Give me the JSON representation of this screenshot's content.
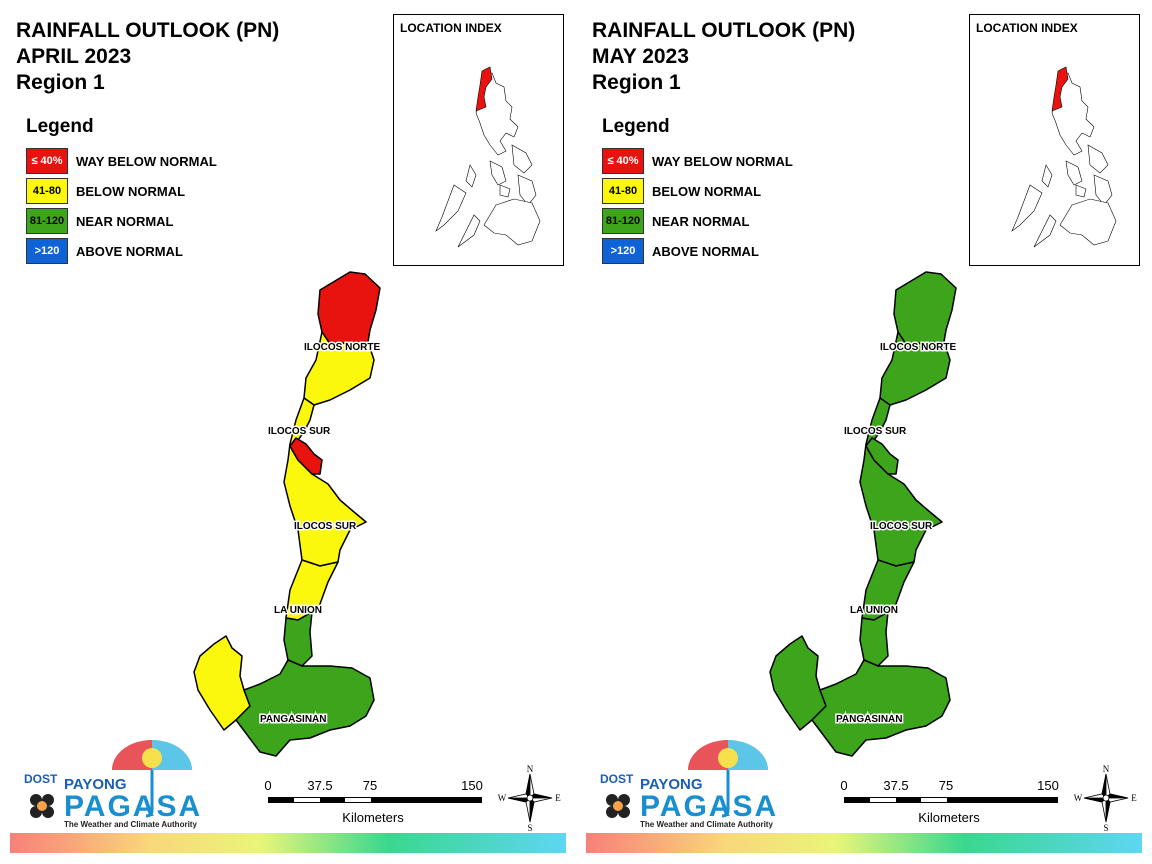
{
  "panels": [
    {
      "title_line1": "RAINFALL OUTLOOK (PN)",
      "title_line2": "APRIL 2023",
      "title_line3": "Region 1",
      "location_index_title": "LOCATION INDEX",
      "province_labels": {
        "ilocos_norte": "ILOCOS NORTE",
        "ilocos_sur_north": "ILOCOS SUR",
        "ilocos_sur_south": "ILOCOS SUR",
        "la_union": "LA UNION",
        "pangasinan": "PANGASINAN"
      },
      "fills": {
        "ilocos_norte_north": "way_below",
        "ilocos_norte_south": "below",
        "ilocos_sur": "below",
        "ilocos_sur_pocket": "way_below",
        "la_union": "below",
        "la_union_south": "near",
        "pangasinan_west": "below",
        "pangasinan_east": "near"
      }
    },
    {
      "title_line1": "RAINFALL OUTLOOK (PN)",
      "title_line2": "MAY 2023",
      "title_line3": "Region 1",
      "location_index_title": "LOCATION INDEX",
      "province_labels": {
        "ilocos_norte": "ILOCOS NORTE",
        "ilocos_sur_north": "ILOCOS SUR",
        "ilocos_sur_south": "ILOCOS SUR",
        "la_union": "LA UNION",
        "pangasinan": "PANGASINAN"
      },
      "fills": {
        "ilocos_norte_north": "near",
        "ilocos_norte_south": "near",
        "ilocos_sur": "near",
        "ilocos_sur_pocket": "near",
        "la_union": "near",
        "la_union_south": "near",
        "pangasinan_west": "near",
        "pangasinan_east": "near"
      }
    }
  ],
  "legend": {
    "title": "Legend",
    "items": [
      {
        "key": "way_below",
        "range": "≤ 40%",
        "label": "WAY BELOW NORMAL",
        "color": "#e8130f",
        "text_color": "#ffffff"
      },
      {
        "key": "below",
        "range": "41-80",
        "label": "BELOW NORMAL",
        "color": "#fbf80d",
        "text_color": "#000000"
      },
      {
        "key": "near",
        "range": "81-120",
        "label": "NEAR NORMAL",
        "color": "#3ca51b",
        "text_color": "#000000"
      },
      {
        "key": "above",
        "range": ">120",
        "label": "ABOVE NORMAL",
        "color": "#0e63d6",
        "text_color": "#ffffff"
      }
    ]
  },
  "scale": {
    "ticks": [
      "0",
      "37.5",
      "75",
      "150"
    ],
    "unit": "Kilometers"
  },
  "compass": {
    "n": "N",
    "e": "E",
    "s": "S",
    "w": "W"
  },
  "logo": {
    "dost": "DOST",
    "payong": "PAYONG",
    "pagasa": "PAGASA",
    "tagline": "The Weather and Climate Authority"
  }
}
